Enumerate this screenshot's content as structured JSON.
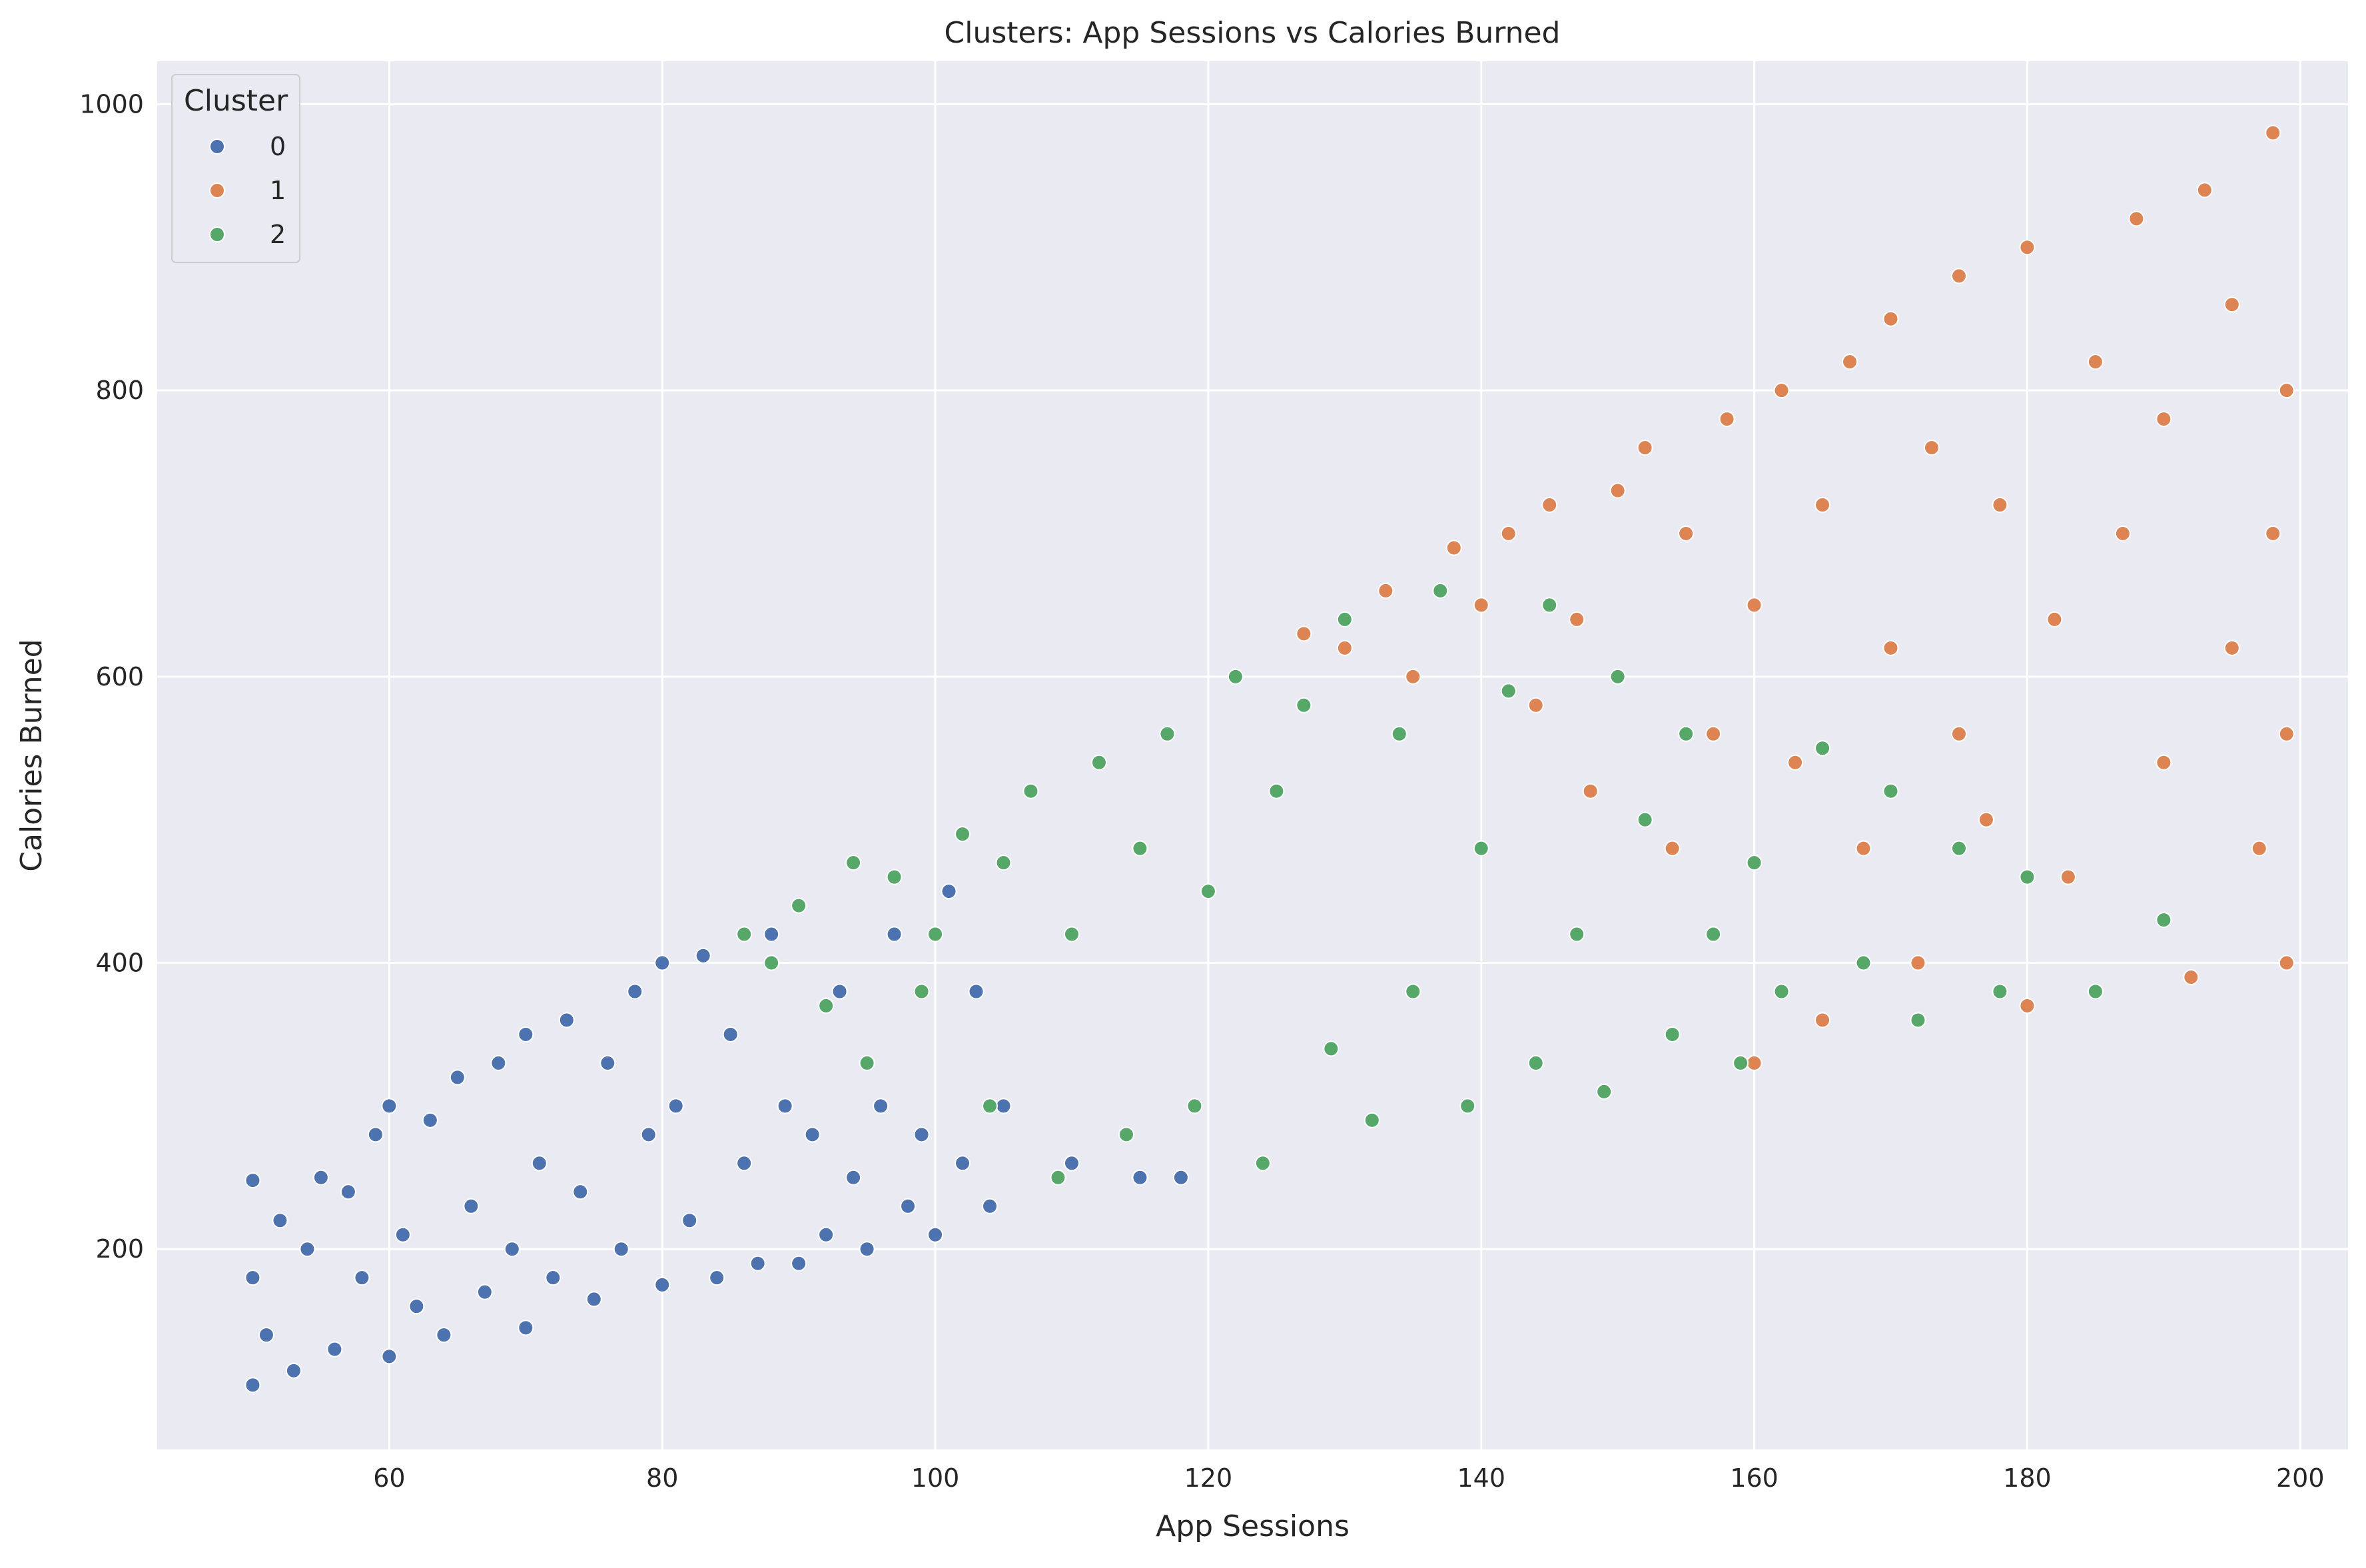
{
  "chart_data": {
    "type": "scatter",
    "title": "Clusters: App Sessions vs Calories Burned",
    "xlabel": "App Sessions",
    "ylabel": "Calories Burned",
    "xlim": [
      43,
      203.5
    ],
    "ylim": [
      60,
      1030
    ],
    "xticks": [
      "60",
      "80",
      "100",
      "120",
      "140",
      "160",
      "180",
      "200"
    ],
    "yticks": [
      "200",
      "400",
      "600",
      "800",
      "1000"
    ],
    "grid": true,
    "legend": {
      "title": "Cluster",
      "placement": "top-left"
    },
    "series": [
      {
        "name": "0",
        "color": "#4c72b0",
        "description_of_shape": "points spread between the lower line y≈2x+3 and upper line y≈5x",
        "x": [
          50,
          50,
          50,
          51,
          52,
          53,
          54,
          55,
          56,
          57,
          58,
          59,
          60,
          60,
          61,
          62,
          63,
          64,
          65,
          66,
          67,
          68,
          69,
          70,
          70,
          71,
          72,
          73,
          74,
          75,
          76,
          77,
          78,
          79,
          80,
          80,
          81,
          82,
          83,
          84,
          85,
          86,
          87,
          88,
          89,
          90,
          90,
          91,
          92,
          93,
          94,
          95,
          96,
          97,
          98,
          99,
          100,
          101,
          102,
          103,
          104,
          105,
          110,
          115,
          118
        ],
        "y": [
          105,
          180,
          248,
          140,
          220,
          115,
          200,
          250,
          130,
          240,
          180,
          280,
          125,
          300,
          210,
          160,
          290,
          140,
          320,
          230,
          170,
          330,
          200,
          145,
          350,
          260,
          180,
          360,
          240,
          165,
          330,
          200,
          380,
          280,
          175,
          400,
          300,
          220,
          405,
          180,
          350,
          260,
          190,
          420,
          300,
          190,
          440,
          280,
          210,
          380,
          250,
          200,
          300,
          420,
          230,
          280,
          210,
          450,
          260,
          380,
          230,
          300,
          260,
          250,
          250
        ]
      },
      {
        "name": "1",
        "color": "#dd8452",
        "description_of_shape": "points spread between the lower line y≈2x+3 and upper line y≈5x, x from ~125",
        "x": [
          127,
          130,
          133,
          135,
          138,
          140,
          142,
          144,
          145,
          147,
          148,
          150,
          150,
          152,
          154,
          155,
          157,
          158,
          160,
          160,
          162,
          163,
          165,
          165,
          167,
          168,
          170,
          170,
          172,
          173,
          175,
          175,
          177,
          178,
          180,
          180,
          182,
          183,
          185,
          185,
          187,
          188,
          190,
          190,
          192,
          193,
          195,
          195,
          197,
          198,
          198,
          199,
          199,
          199
        ],
        "y": [
          630,
          620,
          660,
          600,
          690,
          650,
          700,
          580,
          720,
          640,
          520,
          730,
          600,
          760,
          480,
          700,
          560,
          780,
          330,
          650,
          800,
          540,
          360,
          720,
          820,
          480,
          620,
          850,
          400,
          760,
          560,
          880,
          500,
          720,
          370,
          900,
          640,
          460,
          820,
          380,
          700,
          920,
          540,
          780,
          390,
          940,
          620,
          860,
          480,
          700,
          980,
          400,
          560,
          800
        ]
      },
      {
        "name": "2",
        "color": "#55a868",
        "description_of_shape": "middle band, x ≈ 85–190",
        "x": [
          86,
          88,
          90,
          92,
          94,
          95,
          97,
          99,
          100,
          102,
          104,
          105,
          107,
          109,
          110,
          112,
          114,
          115,
          117,
          119,
          120,
          122,
          124,
          125,
          127,
          129,
          130,
          132,
          134,
          135,
          137,
          139,
          140,
          142,
          144,
          145,
          147,
          149,
          150,
          152,
          154,
          155,
          157,
          159,
          160,
          162,
          165,
          168,
          170,
          172,
          175,
          178,
          180,
          185,
          190
        ],
        "y": [
          420,
          400,
          440,
          370,
          470,
          330,
          460,
          380,
          420,
          490,
          300,
          470,
          520,
          250,
          420,
          540,
          280,
          480,
          560,
          300,
          450,
          600,
          260,
          520,
          580,
          340,
          640,
          290,
          560,
          380,
          660,
          300,
          480,
          590,
          330,
          650,
          420,
          310,
          600,
          500,
          350,
          560,
          420,
          330,
          470,
          380,
          550,
          400,
          520,
          360,
          480,
          380,
          460,
          380,
          430
        ]
      }
    ]
  }
}
